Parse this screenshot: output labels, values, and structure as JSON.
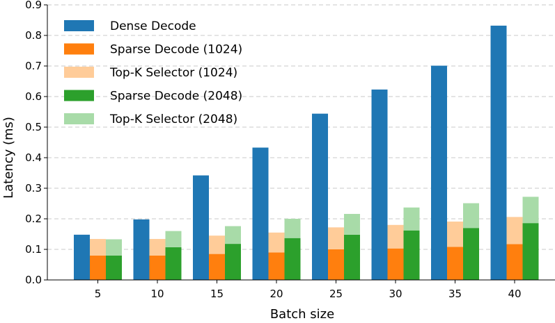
{
  "chart_data": {
    "type": "bar",
    "xlabel": "Batch size",
    "ylabel": "Latency (ms)",
    "ylim": [
      0,
      0.9
    ],
    "yticks": [
      0.0,
      0.1,
      0.2,
      0.3,
      0.4,
      0.5,
      0.6,
      0.7,
      0.8,
      0.9
    ],
    "ytick_labels": [
      "0.0",
      "0.1",
      "0.2",
      "0.3",
      "0.4",
      "0.5",
      "0.6",
      "0.7",
      "0.8",
      "0.9"
    ],
    "grid": "y-dashed",
    "legend_position": "top-left",
    "categories": [
      "5",
      "10",
      "15",
      "20",
      "25",
      "30",
      "35",
      "40"
    ],
    "groups": [
      {
        "stack": [
          {
            "name": "Dense Decode",
            "color": "#1f77b4",
            "values": [
              0.148,
              0.198,
              0.342,
              0.433,
              0.544,
              0.623,
              0.701,
              0.832
            ]
          }
        ]
      },
      {
        "stack": [
          {
            "name": "Sparse Decode (1024)",
            "color": "#ff7f0e",
            "values": [
              0.08,
              0.08,
              0.085,
              0.09,
              0.1,
              0.103,
              0.108,
              0.117
            ]
          },
          {
            "name": "Top-K Selector (1024)",
            "color": "#ffcc99",
            "values": [
              0.054,
              0.054,
              0.06,
              0.065,
              0.072,
              0.077,
              0.083,
              0.089
            ]
          }
        ]
      },
      {
        "stack": [
          {
            "name": "Sparse Decode (2048)",
            "color": "#2ca02c",
            "values": [
              0.08,
              0.107,
              0.118,
              0.137,
              0.148,
              0.162,
              0.17,
              0.186
            ]
          },
          {
            "name": "Top-K Selector (2048)",
            "color": "#a8dba8",
            "values": [
              0.053,
              0.053,
              0.058,
              0.063,
              0.068,
              0.075,
              0.081,
              0.086
            ]
          }
        ]
      }
    ],
    "legend": [
      {
        "label": "Dense Decode",
        "color": "#1f77b4"
      },
      {
        "label": "Sparse Decode (1024)",
        "color": "#ff7f0e"
      },
      {
        "label": "Top-K Selector (1024)",
        "color": "#ffcc99"
      },
      {
        "label": "Sparse Decode (2048)",
        "color": "#2ca02c"
      },
      {
        "label": "Top-K Selector (2048)",
        "color": "#a8dba8"
      }
    ]
  }
}
